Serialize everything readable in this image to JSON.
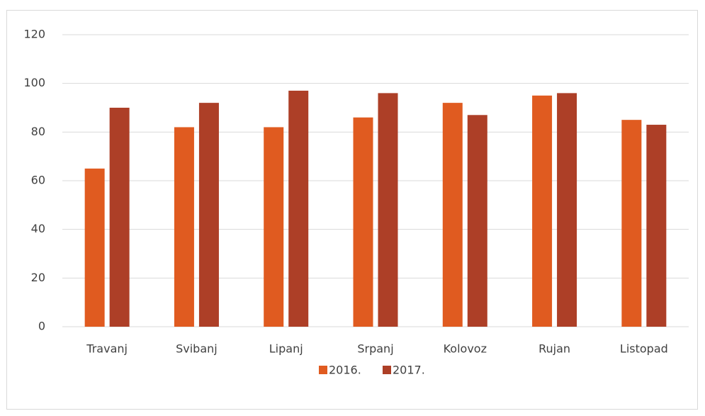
{
  "chart_data": {
    "type": "bar",
    "categories": [
      "Travanj",
      "Svibanj",
      "Lipanj",
      "Srpanj",
      "Kolovoz",
      "Rujan",
      "Listopad"
    ],
    "series": [
      {
        "name": "2016.",
        "color": "#e05b20",
        "values": [
          65,
          82,
          82,
          86,
          92,
          95,
          85
        ]
      },
      {
        "name": "2017.",
        "color": "#ad3f27",
        "values": [
          90,
          92,
          97,
          96,
          87,
          96,
          83
        ]
      }
    ],
    "ylim": [
      0,
      120
    ],
    "yticks": [
      0,
      20,
      40,
      60,
      80,
      100,
      120
    ],
    "grid": true,
    "legend": "bottom"
  }
}
